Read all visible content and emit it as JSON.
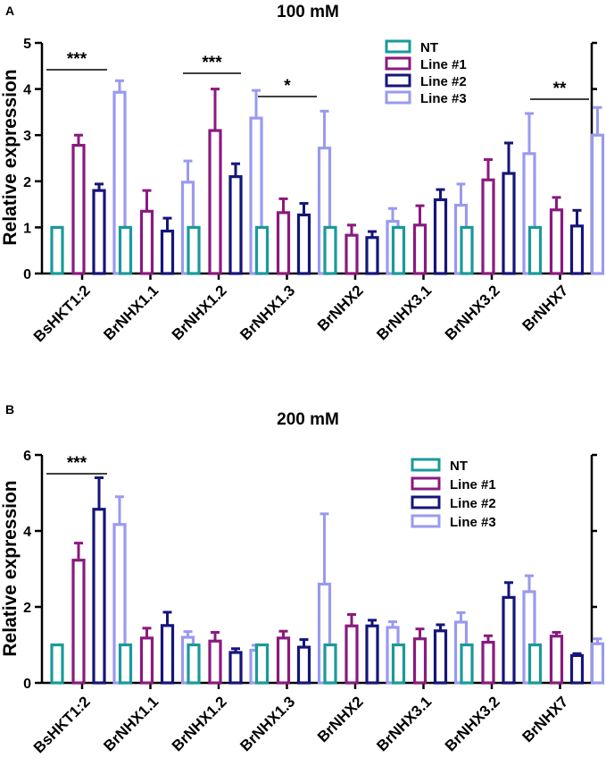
{
  "colors": {
    "NT": "#1a9a9a",
    "Line #1": "#8a1a7e",
    "Line #2": "#15157a",
    "Line #3": "#9a9aef"
  },
  "chart_data": [
    {
      "panel": "A",
      "type": "bar",
      "title": "100 mM",
      "ylabel": "Relative expression",
      "xlabel": "",
      "ylim": [
        0,
        5
      ],
      "yticks": [
        "0",
        "1",
        "2",
        "3",
        "4",
        "5"
      ],
      "categories": [
        "BsHKT1:2",
        "BrNHX1.1",
        "BrNHX1.2",
        "BrNHX1.3",
        "BrNHX2",
        "BrNHX3.1",
        "BrNHX3.2",
        "BrNHX7"
      ],
      "legend": [
        "NT",
        "Line #1",
        "Line #2",
        "Line #3"
      ],
      "legend_position": "top-right",
      "series": [
        {
          "name": "NT",
          "values": [
            1.0,
            1.0,
            1.0,
            1.0,
            1.0,
            1.0,
            1.0,
            1.0
          ],
          "errors": [
            0,
            0,
            0,
            0,
            0,
            0,
            0,
            0
          ]
        },
        {
          "name": "Line #1",
          "values": [
            2.78,
            1.35,
            3.1,
            1.32,
            0.83,
            1.05,
            2.03,
            1.38
          ],
          "errors": [
            0.22,
            0.45,
            0.9,
            0.3,
            0.22,
            0.42,
            0.44,
            0.27
          ]
        },
        {
          "name": "Line #2",
          "values": [
            1.8,
            0.92,
            2.1,
            1.27,
            0.78,
            1.6,
            2.17,
            1.03
          ],
          "errors": [
            0.14,
            0.28,
            0.28,
            0.25,
            0.13,
            0.22,
            0.66,
            0.34
          ]
        },
        {
          "name": "Line #3",
          "values": [
            3.93,
            1.98,
            3.37,
            2.72,
            1.13,
            1.48,
            2.6,
            3.0
          ],
          "errors": [
            0.25,
            0.46,
            0.6,
            0.8,
            0.28,
            0.46,
            0.87,
            0.6
          ]
        }
      ],
      "significance": [
        {
          "label": "***",
          "category": "BsHKT1:2"
        },
        {
          "label": "***",
          "category": "BrNHX1.2"
        },
        {
          "label": "*",
          "category": "BrNHX1.3"
        },
        {
          "label": "**",
          "category": "BrNHX7"
        }
      ]
    },
    {
      "panel": "B",
      "type": "bar",
      "title": "200 mM",
      "ylabel": "Relative expression",
      "xlabel": "",
      "ylim": [
        0,
        6
      ],
      "yticks": [
        "0",
        "2",
        "4",
        "6"
      ],
      "categories": [
        "BsHKT1:2",
        "BrNHX1.1",
        "BrNHX1.2",
        "BrNHX1.3",
        "BrNHX2",
        "BrNHX3.1",
        "BrNHX3.2",
        "BrNHX7"
      ],
      "legend": [
        "NT",
        "Line #1",
        "Line #2",
        "Line #3"
      ],
      "legend_position": "top-right",
      "series": [
        {
          "name": "NT",
          "values": [
            1.0,
            1.0,
            1.0,
            1.0,
            1.0,
            1.0,
            1.0,
            1.0
          ],
          "errors": [
            0,
            0,
            0,
            0,
            0,
            0,
            0,
            0
          ]
        },
        {
          "name": "Line #1",
          "values": [
            3.23,
            1.18,
            1.1,
            1.18,
            1.5,
            1.16,
            1.07,
            1.23
          ],
          "errors": [
            0.45,
            0.26,
            0.23,
            0.18,
            0.3,
            0.26,
            0.17,
            0.1
          ]
        },
        {
          "name": "Line #2",
          "values": [
            4.57,
            1.51,
            0.8,
            0.94,
            1.5,
            1.37,
            2.25,
            0.72
          ],
          "errors": [
            0.83,
            0.35,
            0.1,
            0.2,
            0.15,
            0.16,
            0.39,
            0.05
          ]
        },
        {
          "name": "Line #3",
          "values": [
            4.17,
            1.2,
            0.86,
            2.6,
            1.46,
            1.6,
            2.4,
            1.03
          ],
          "errors": [
            0.73,
            0.15,
            0.13,
            1.85,
            0.15,
            0.25,
            0.42,
            0.13
          ]
        }
      ],
      "significance": [
        {
          "label": "***",
          "category": "BsHKT1:2"
        }
      ]
    }
  ]
}
